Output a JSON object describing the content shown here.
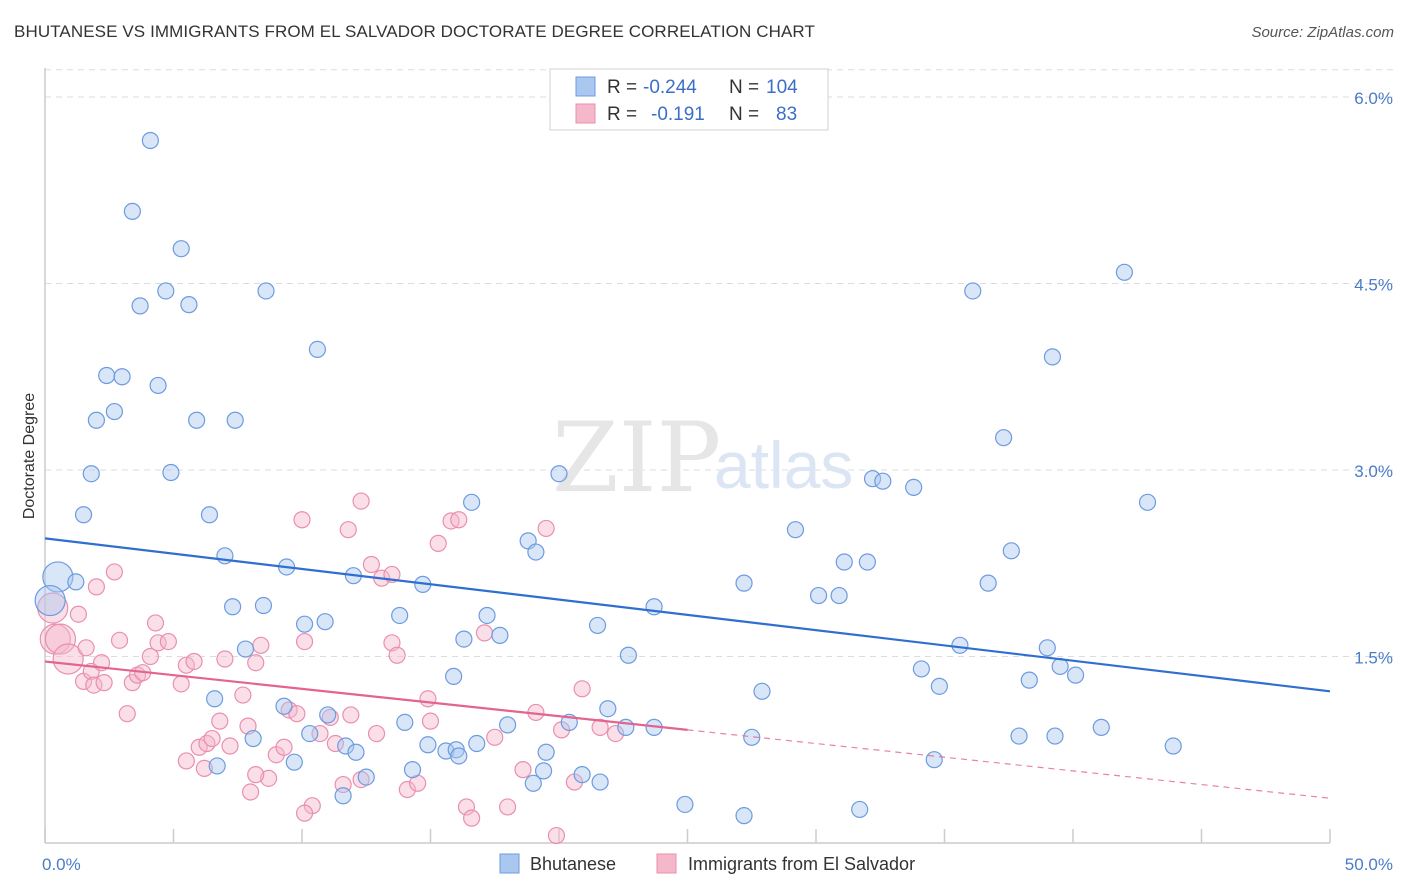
{
  "header": {
    "title": "BHUTANESE VS IMMIGRANTS FROM EL SALVADOR DOCTORATE DEGREE CORRELATION CHART",
    "source": "Source: ZipAtlas.com"
  },
  "watermark": {
    "zip": "ZIP",
    "atlas": "atlas"
  },
  "legend_top": {
    "rows": [
      {
        "r_label": "R =",
        "r_value": "-0.244",
        "n_label": "N =",
        "n_value": "104"
      },
      {
        "r_label": "R =",
        "r_value": "-0.191",
        "n_label": "N =",
        "n_value": "83"
      }
    ]
  },
  "legend_bottom": {
    "items": [
      "Bhutanese",
      "Immigrants from El Salvador"
    ]
  },
  "chart_data": {
    "type": "scatter",
    "title": "BHUTANESE VS IMMIGRANTS FROM EL SALVADOR DOCTORATE DEGREE CORRELATION CHART",
    "xlabel": "",
    "ylabel": "Doctorate Degree",
    "xlim": [
      0,
      50
    ],
    "ylim": [
      0,
      6.3
    ],
    "x_tick_labels": [
      "0.0%",
      "50.0%"
    ],
    "y_ticks": [
      1.5,
      3.0,
      4.5,
      6.0
    ],
    "y_tick_labels": [
      "1.5%",
      "3.0%",
      "4.5%",
      "6.0%"
    ],
    "grid": true,
    "legend_position": "top-center",
    "colors": {
      "blue_fill": "#a9c7ef",
      "blue_stroke": "#6d9be0",
      "blue_line": "#2f6fcf",
      "pink_fill": "#f5b8cb",
      "pink_stroke": "#ea8fad",
      "pink_line": "#e2648f",
      "grid": "#dddddd",
      "axis": "#cccccc"
    },
    "series": [
      {
        "name": "Bhutanese",
        "R": -0.244,
        "N": 104,
        "trend": {
          "x0": 0.0,
          "y0": 2.45,
          "x1": 50.0,
          "y1": 1.22
        },
        "points": [
          [
            4.1,
            5.65
          ],
          [
            3.4,
            5.08
          ],
          [
            5.3,
            4.78
          ],
          [
            4.7,
            4.44
          ],
          [
            3.7,
            4.32
          ],
          [
            5.6,
            4.33
          ],
          [
            8.6,
            4.44
          ],
          [
            10.6,
            3.97
          ],
          [
            2.4,
            3.76
          ],
          [
            3.0,
            3.75
          ],
          [
            4.4,
            3.68
          ],
          [
            2.0,
            3.4
          ],
          [
            2.7,
            3.47
          ],
          [
            5.9,
            3.4
          ],
          [
            7.4,
            3.4
          ],
          [
            1.8,
            2.97
          ],
          [
            4.9,
            2.98
          ],
          [
            1.5,
            2.64
          ],
          [
            6.4,
            2.64
          ],
          [
            0.5,
            2.14
          ],
          [
            1.2,
            2.1
          ],
          [
            7.0,
            2.31
          ],
          [
            9.4,
            2.22
          ],
          [
            12.0,
            2.15
          ],
          [
            14.7,
            2.08
          ],
          [
            16.6,
            2.74
          ],
          [
            18.8,
            2.43
          ],
          [
            19.1,
            2.34
          ],
          [
            20.0,
            2.97
          ],
          [
            7.3,
            1.9
          ],
          [
            8.5,
            1.91
          ],
          [
            10.1,
            1.76
          ],
          [
            10.9,
            1.78
          ],
          [
            13.8,
            1.83
          ],
          [
            17.2,
            1.83
          ],
          [
            16.3,
            1.64
          ],
          [
            17.7,
            1.67
          ],
          [
            21.5,
            1.75
          ],
          [
            22.7,
            1.51
          ],
          [
            23.7,
            1.9
          ],
          [
            27.2,
            2.09
          ],
          [
            29.2,
            2.52
          ],
          [
            30.1,
            1.99
          ],
          [
            30.9,
            1.99
          ],
          [
            31.1,
            2.26
          ],
          [
            32.0,
            2.26
          ],
          [
            32.2,
            2.93
          ],
          [
            32.6,
            2.91
          ],
          [
            33.8,
            2.86
          ],
          [
            7.8,
            1.56
          ],
          [
            6.6,
            1.16
          ],
          [
            9.3,
            1.1
          ],
          [
            10.3,
            0.88
          ],
          [
            11.0,
            1.03
          ],
          [
            14.0,
            0.97
          ],
          [
            11.7,
            0.78
          ],
          [
            12.1,
            0.73
          ],
          [
            14.9,
            0.79
          ],
          [
            15.6,
            0.74
          ],
          [
            16.0,
            0.75
          ],
          [
            16.1,
            0.7
          ],
          [
            16.8,
            0.8
          ],
          [
            18.0,
            0.95
          ],
          [
            19.0,
            0.48
          ],
          [
            19.4,
            0.58
          ],
          [
            19.5,
            0.73
          ],
          [
            20.4,
            0.97
          ],
          [
            20.9,
            0.55
          ],
          [
            21.6,
            0.49
          ],
          [
            21.9,
            1.08
          ],
          [
            22.6,
            0.93
          ],
          [
            23.7,
            0.93
          ],
          [
            14.3,
            0.59
          ],
          [
            12.5,
            0.53
          ],
          [
            11.6,
            0.38
          ],
          [
            9.7,
            0.65
          ],
          [
            8.1,
            0.84
          ],
          [
            6.7,
            0.62
          ],
          [
            15.9,
            1.34
          ],
          [
            24.9,
            0.31
          ],
          [
            27.5,
            0.85
          ],
          [
            27.9,
            1.22
          ],
          [
            27.2,
            0.22
          ],
          [
            31.7,
            0.27
          ],
          [
            34.1,
            1.4
          ],
          [
            34.8,
            1.26
          ],
          [
            34.6,
            0.67
          ],
          [
            35.6,
            1.59
          ],
          [
            36.1,
            4.44
          ],
          [
            36.7,
            2.09
          ],
          [
            37.3,
            3.26
          ],
          [
            37.6,
            2.35
          ],
          [
            38.3,
            1.31
          ],
          [
            39.2,
            3.91
          ],
          [
            39.0,
            1.57
          ],
          [
            39.5,
            1.42
          ],
          [
            40.1,
            1.35
          ],
          [
            41.1,
            0.93
          ],
          [
            42.0,
            4.59
          ],
          [
            42.9,
            2.74
          ],
          [
            43.9,
            0.78
          ],
          [
            37.9,
            0.86
          ],
          [
            39.3,
            0.86
          ],
          [
            0.2,
            1.95
          ]
        ]
      },
      {
        "name": "Immigrants from El Salvador",
        "R": -0.191,
        "N": 83,
        "trend": {
          "x0": 0.0,
          "y0": 1.46,
          "x1": 25.0,
          "y1": 0.91
        },
        "trend_dashed": {
          "x0": 25.0,
          "y0": 0.91,
          "x1": 50.0,
          "y1": 0.36
        },
        "points": [
          [
            0.3,
            1.89
          ],
          [
            0.4,
            1.64
          ],
          [
            0.6,
            1.64
          ],
          [
            0.9,
            1.48
          ],
          [
            1.3,
            1.84
          ],
          [
            1.5,
            1.3
          ],
          [
            1.6,
            1.57
          ],
          [
            1.8,
            1.38
          ],
          [
            1.9,
            1.27
          ],
          [
            2.2,
            1.45
          ],
          [
            2.3,
            1.29
          ],
          [
            2.7,
            2.18
          ],
          [
            2.9,
            1.63
          ],
          [
            3.2,
            1.04
          ],
          [
            3.4,
            1.29
          ],
          [
            3.6,
            1.35
          ],
          [
            3.8,
            1.37
          ],
          [
            4.1,
            1.5
          ],
          [
            4.3,
            1.77
          ],
          [
            4.4,
            1.61
          ],
          [
            4.8,
            1.62
          ],
          [
            5.3,
            1.28
          ],
          [
            5.5,
            1.43
          ],
          [
            5.8,
            1.46
          ],
          [
            6.0,
            0.77
          ],
          [
            6.3,
            0.8
          ],
          [
            6.5,
            0.84
          ],
          [
            6.8,
            0.98
          ],
          [
            7.0,
            1.48
          ],
          [
            7.2,
            0.78
          ],
          [
            7.7,
            1.19
          ],
          [
            7.9,
            0.94
          ],
          [
            8.2,
            1.45
          ],
          [
            8.4,
            1.59
          ],
          [
            8.7,
            0.52
          ],
          [
            9.0,
            0.71
          ],
          [
            9.3,
            0.77
          ],
          [
            9.5,
            1.07
          ],
          [
            9.8,
            1.04
          ],
          [
            10.1,
            1.62
          ],
          [
            10.4,
            0.3
          ],
          [
            10.7,
            0.88
          ],
          [
            11.1,
            1.01
          ],
          [
            11.3,
            0.8
          ],
          [
            11.6,
            0.47
          ],
          [
            11.9,
            1.03
          ],
          [
            12.3,
            0.51
          ],
          [
            12.7,
            2.24
          ],
          [
            13.1,
            2.13
          ],
          [
            13.5,
            1.61
          ],
          [
            13.7,
            1.51
          ],
          [
            14.1,
            0.43
          ],
          [
            14.5,
            0.48
          ],
          [
            14.9,
            1.16
          ],
          [
            15.3,
            2.41
          ],
          [
            15.8,
            2.59
          ],
          [
            16.1,
            2.6
          ],
          [
            16.4,
            0.29
          ],
          [
            17.1,
            1.69
          ],
          [
            17.5,
            0.85
          ],
          [
            18.0,
            0.29
          ],
          [
            18.6,
            0.59
          ],
          [
            19.1,
            1.05
          ],
          [
            19.5,
            2.53
          ],
          [
            20.1,
            0.91
          ],
          [
            20.6,
            0.49
          ],
          [
            20.9,
            1.24
          ],
          [
            21.6,
            0.93
          ],
          [
            22.2,
            0.88
          ],
          [
            2.0,
            2.06
          ],
          [
            5.5,
            0.66
          ],
          [
            6.2,
            0.6
          ],
          [
            8.0,
            0.41
          ],
          [
            12.3,
            2.75
          ],
          [
            11.8,
            2.52
          ],
          [
            10.0,
            2.6
          ],
          [
            13.5,
            2.16
          ],
          [
            15.0,
            0.98
          ],
          [
            16.6,
            0.2
          ],
          [
            19.9,
            0.06
          ],
          [
            8.2,
            0.55
          ],
          [
            10.1,
            0.24
          ],
          [
            12.9,
            0.88
          ]
        ]
      }
    ]
  }
}
